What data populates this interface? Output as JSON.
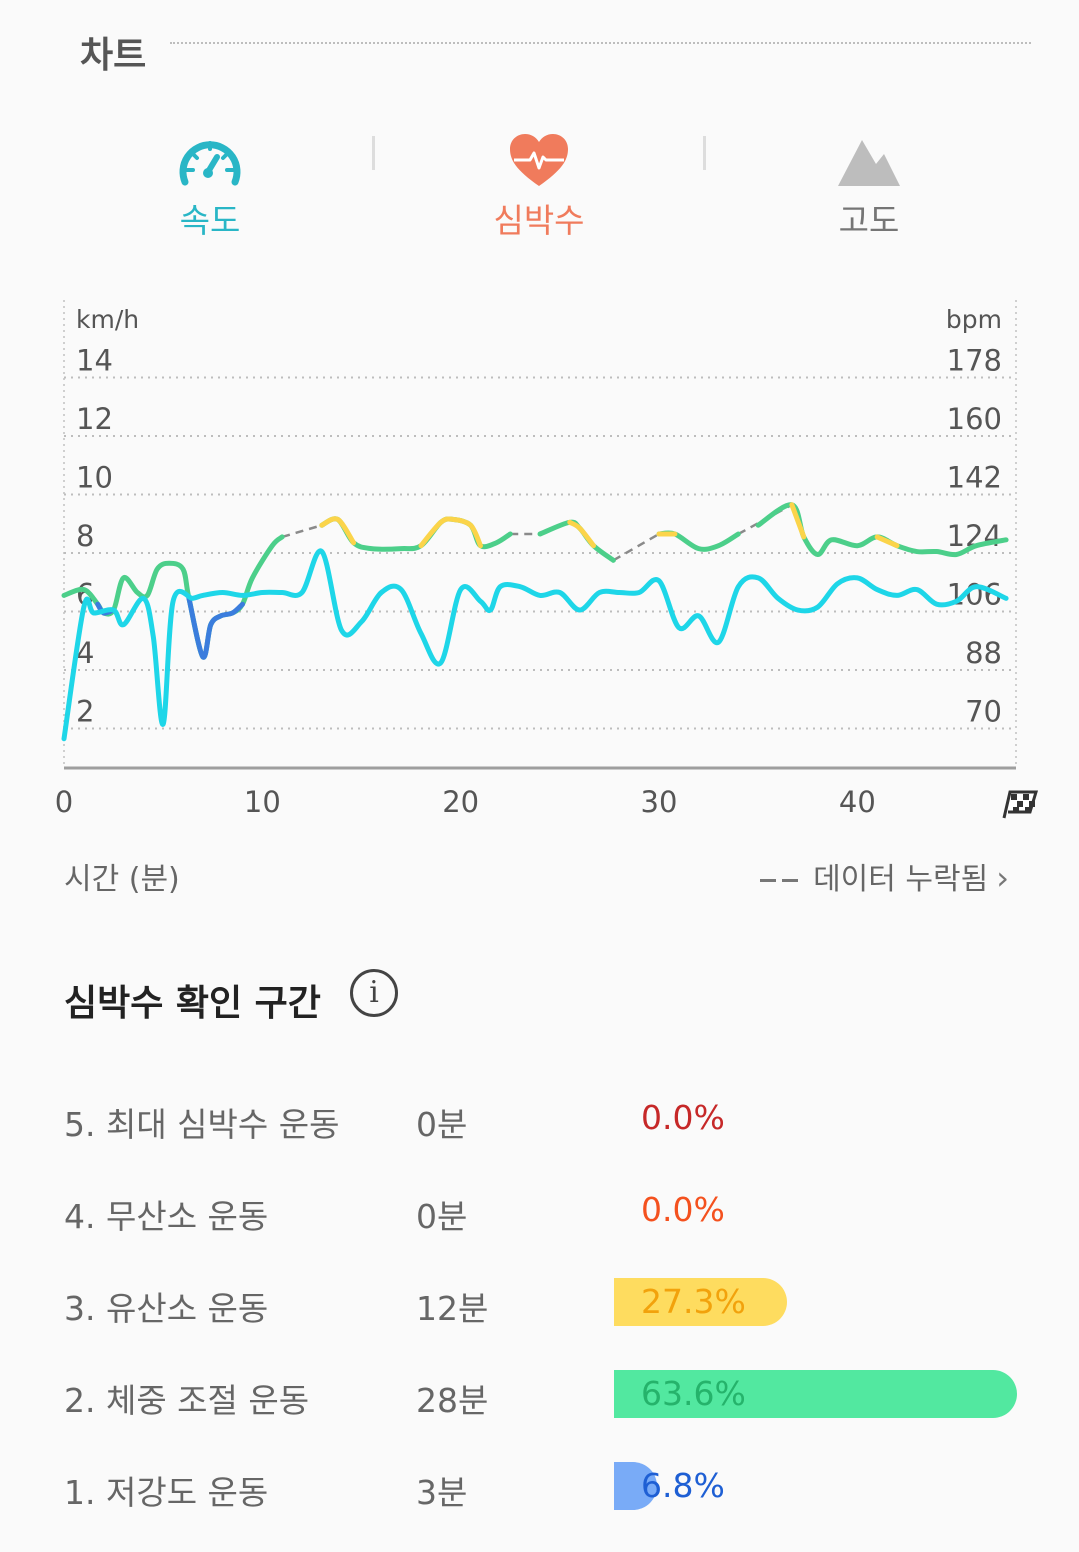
{
  "header": {
    "title": "차트"
  },
  "tabs": [
    {
      "label": "속도",
      "icon": "speedometer-icon",
      "color": "#29b6c6"
    },
    {
      "label": "심박수",
      "icon": "heart-rate-icon",
      "color": "#f07b5c"
    },
    {
      "label": "고도",
      "icon": "mountain-icon",
      "color": "#9e9e9e"
    }
  ],
  "chart": {
    "left_unit": "km/h",
    "right_unit": "bpm",
    "x_label": "시간 (분)",
    "missing_label": "데이터 누락됨"
  },
  "chart_data": {
    "type": "line",
    "x_ticks": [
      "0",
      "10",
      "20",
      "30",
      "40"
    ],
    "y_left_ticks": [
      "14",
      "12",
      "10",
      "8",
      "6",
      "4",
      "2"
    ],
    "y_right_ticks": [
      "178",
      "160",
      "142",
      "124",
      "106",
      "88",
      "70"
    ],
    "ylim_left": [
      0,
      16
    ],
    "ylim_right": [
      52,
      196
    ],
    "xlim": [
      0,
      48
    ],
    "grid": true,
    "finish_marker": "finish-flag-icon",
    "series": [
      {
        "color": "#4ccf8a",
        "points": [
          [
            0,
            5.9
          ],
          [
            1,
            6.1
          ],
          [
            1.7,
            5.6
          ],
          [
            2,
            5.3
          ],
          [
            2.5,
            5.4
          ],
          [
            3,
            6.5
          ],
          [
            3.7,
            6.0
          ],
          [
            4.2,
            5.9
          ],
          [
            4.7,
            6.8
          ],
          [
            5.3,
            7.0
          ],
          [
            6,
            6.8
          ],
          [
            6.3,
            5.8
          ],
          [
            7,
            3.8
          ],
          [
            7.4,
            4.9
          ],
          [
            7.9,
            5.2
          ],
          [
            8.5,
            5.3
          ],
          [
            9,
            5.6
          ],
          [
            9.5,
            6.5
          ],
          [
            10.5,
            7.6
          ],
          [
            11,
            7.9
          ],
          [
            13,
            8.3
          ],
          [
            13.8,
            8.5
          ],
          [
            14.6,
            7.7
          ],
          [
            15.5,
            7.5
          ],
          [
            17,
            7.5
          ],
          [
            18,
            7.6
          ],
          [
            19,
            8.4
          ],
          [
            19.6,
            8.5
          ],
          [
            20.5,
            8.3
          ],
          [
            21,
            7.6
          ],
          [
            21.8,
            7.7
          ],
          [
            22.5,
            8.0
          ],
          [
            24,
            8.0
          ],
          [
            25.5,
            8.4
          ],
          [
            26,
            8.2
          ],
          [
            26.7,
            7.6
          ],
          [
            27.7,
            7.1
          ],
          [
            30,
            8.0
          ],
          [
            30.8,
            8.0
          ],
          [
            32,
            7.5
          ],
          [
            33,
            7.6
          ],
          [
            34,
            8.0
          ],
          [
            35,
            8.3
          ],
          [
            36.7,
            9.0
          ],
          [
            37.3,
            7.9
          ],
          [
            38,
            7.3
          ],
          [
            38.7,
            7.8
          ],
          [
            40,
            7.6
          ],
          [
            41,
            7.9
          ],
          [
            42,
            7.6
          ],
          [
            43,
            7.4
          ],
          [
            44,
            7.4
          ],
          [
            45,
            7.3
          ],
          [
            46,
            7.6
          ],
          [
            47.5,
            7.8
          ]
        ]
      },
      {
        "color": "#1ed6e8",
        "points": [
          [
            0,
            1.0
          ],
          [
            1,
            5.5
          ],
          [
            1.5,
            5.3
          ],
          [
            2.5,
            5.4
          ],
          [
            3,
            4.9
          ],
          [
            4,
            5.8
          ],
          [
            4.5,
            4.5
          ],
          [
            5,
            1.5
          ],
          [
            5.5,
            5.7
          ],
          [
            6.5,
            5.8
          ],
          [
            7,
            5.9
          ],
          [
            8,
            6.0
          ],
          [
            9,
            5.9
          ],
          [
            10,
            6.0
          ],
          [
            11,
            6.0
          ],
          [
            12,
            6.0
          ],
          [
            13,
            7.4
          ],
          [
            14,
            4.7
          ],
          [
            15,
            5.0
          ],
          [
            16,
            6.0
          ],
          [
            17,
            6.1
          ],
          [
            18,
            4.6
          ],
          [
            19,
            3.6
          ],
          [
            20,
            6.1
          ],
          [
            21,
            5.7
          ],
          [
            21.5,
            5.4
          ],
          [
            22,
            6.2
          ],
          [
            23,
            6.2
          ],
          [
            24,
            5.9
          ],
          [
            25,
            6.0
          ],
          [
            26,
            5.4
          ],
          [
            27,
            6.0
          ],
          [
            28,
            6.0
          ],
          [
            29,
            6.0
          ],
          [
            30,
            6.4
          ],
          [
            31,
            4.8
          ],
          [
            32,
            5.2
          ],
          [
            33,
            4.3
          ],
          [
            34,
            6.2
          ],
          [
            35,
            6.5
          ],
          [
            36,
            5.8
          ],
          [
            37,
            5.4
          ],
          [
            38,
            5.5
          ],
          [
            39,
            6.3
          ],
          [
            40,
            6.5
          ],
          [
            41,
            6.1
          ],
          [
            42,
            5.9
          ],
          [
            43,
            6.1
          ],
          [
            44,
            5.6
          ],
          [
            45,
            5.7
          ],
          [
            46,
            6.2
          ],
          [
            47.5,
            5.8
          ]
        ]
      }
    ]
  },
  "zones": {
    "title": "심박수 확인 구간",
    "info_icon": "info-icon",
    "rows": [
      {
        "name": "5. 최대 심박수 운동",
        "time": "0분",
        "percent": "0.0%",
        "value": 0.0,
        "bar_color": "#e53935",
        "text_color": "#c62828"
      },
      {
        "name": "4. 무산소 운동",
        "time": "0분",
        "percent": "0.0%",
        "value": 0.0,
        "bar_color": "#f4511e",
        "text_color": "#f4511e"
      },
      {
        "name": "3. 유산소 운동",
        "time": "12분",
        "percent": "27.3%",
        "value": 27.3,
        "bar_color": "#fedc5f",
        "text_color": "#f2a20c"
      },
      {
        "name": "2. 체중 조절 운동",
        "time": "28분",
        "percent": "63.6%",
        "value": 63.6,
        "bar_color": "#52e8a0",
        "text_color": "#25b36b"
      },
      {
        "name": "1. 저강도 운동",
        "time": "3분",
        "percent": "6.8%",
        "value": 6.8,
        "bar_color": "#79abf7",
        "text_color": "#1e5fd4"
      }
    ]
  }
}
